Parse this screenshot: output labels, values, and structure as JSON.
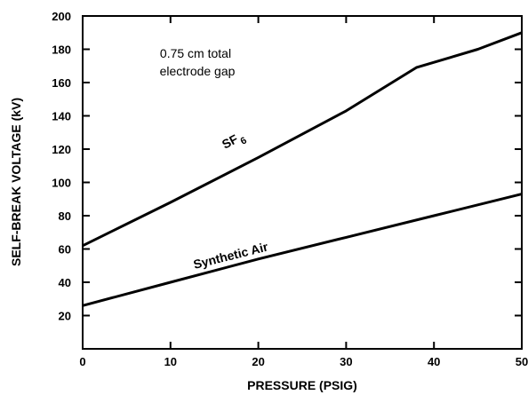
{
  "chart_data": {
    "type": "line",
    "xlabel": "PRESSURE (PSIG)",
    "ylabel": "SELF-BREAK VOLTAGE (kV)",
    "xlim": [
      0,
      50
    ],
    "ylim": [
      0,
      200
    ],
    "x_ticks": [
      0,
      10,
      20,
      30,
      40,
      50
    ],
    "y_ticks": [
      20,
      40,
      60,
      80,
      100,
      120,
      140,
      160,
      180,
      200
    ],
    "grid": false,
    "note_lines": [
      "0.75 cm total",
      "electrode gap"
    ],
    "series": [
      {
        "name": "SF",
        "name_subscript": "6",
        "points": [
          [
            0,
            62
          ],
          [
            10,
            88
          ],
          [
            20,
            115
          ],
          [
            30,
            143
          ],
          [
            38,
            169
          ],
          [
            45,
            180
          ],
          [
            50,
            190
          ]
        ]
      },
      {
        "name": "Synthetic Air",
        "points": [
          [
            0,
            26
          ],
          [
            10,
            40
          ],
          [
            20,
            54
          ],
          [
            30,
            67
          ],
          [
            40,
            80
          ],
          [
            50,
            93
          ]
        ]
      }
    ]
  }
}
